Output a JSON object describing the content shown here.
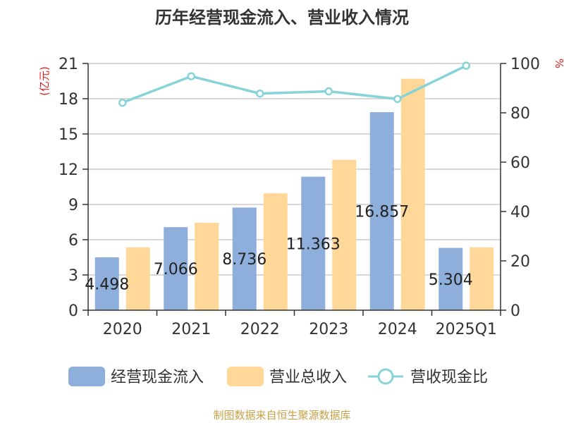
{
  "chart_data": {
    "type": "bar",
    "title": "历年经营现金流入、营业收入情况",
    "left_unit": "(亿元)",
    "right_unit": "%",
    "categories": [
      "2020",
      "2021",
      "2022",
      "2023",
      "2024",
      "2025Q1"
    ],
    "y_left": {
      "min": 0,
      "max": 21,
      "ticks": [
        "0",
        "3",
        "6",
        "9",
        "12",
        "15",
        "18",
        "21"
      ]
    },
    "y_right": {
      "min": 0,
      "max": 100,
      "ticks": [
        "0",
        "20",
        "40",
        "60",
        "80",
        "100"
      ]
    },
    "series": [
      {
        "name": "经营现金流入",
        "type": "bar",
        "axis": "left",
        "color": "#8eaedb",
        "values": [
          4.498,
          7.066,
          8.736,
          11.363,
          16.857,
          5.304
        ],
        "data_labels": [
          "4.498",
          "7.066",
          "8.736",
          "11.363",
          "16.857",
          "5.304"
        ]
      },
      {
        "name": "营业总收入",
        "type": "bar",
        "axis": "left",
        "color": "#ffd899",
        "values": [
          5.35,
          7.45,
          9.95,
          12.8,
          19.7,
          5.35
        ]
      },
      {
        "name": "营收现金比",
        "type": "line",
        "axis": "right",
        "color": "#86d3d8",
        "values": [
          84.1,
          94.8,
          87.8,
          88.7,
          85.6,
          99.1
        ]
      }
    ],
    "legend_position": "bottom",
    "grid": true
  },
  "footer": {
    "source": "制图数据来自恒生聚源数据库"
  }
}
